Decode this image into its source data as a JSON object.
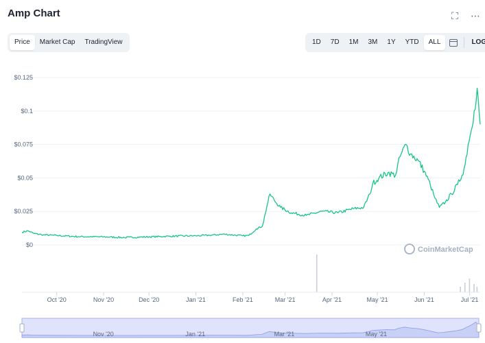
{
  "header": {
    "title": "Amp Chart",
    "fullscreen_icon": "expand-icon",
    "more_icon": "more-horizontal-icon"
  },
  "tabs_left": [
    {
      "label": "Price",
      "active": true
    },
    {
      "label": "Market Cap",
      "active": false
    },
    {
      "label": "TradingView",
      "active": false
    }
  ],
  "ranges": [
    {
      "label": "1D",
      "active": false
    },
    {
      "label": "7D",
      "active": false
    },
    {
      "label": "1M",
      "active": false
    },
    {
      "label": "3M",
      "active": false
    },
    {
      "label": "1Y",
      "active": false
    },
    {
      "label": "YTD",
      "active": false
    },
    {
      "label": "ALL",
      "active": true
    }
  ],
  "calendar_icon": "calendar-icon",
  "log_label": "LOG",
  "watermark": "CoinMarketCap",
  "colors": {
    "line": "#16c784",
    "volume": "#c9ced9",
    "navigator_fill": "#dfe3fb",
    "navigator_border": "#a8b2f0"
  },
  "chart_data": {
    "type": "line",
    "title": "Amp Chart",
    "x_label": "",
    "y_label": "",
    "ylim": [
      0,
      0.125
    ],
    "x_range": [
      "2020-09-08",
      "2021-07-08"
    ],
    "y_ticks": [
      {
        "value": 0,
        "label": "$0"
      },
      {
        "value": 0.025,
        "label": "$0.025"
      },
      {
        "value": 0.05,
        "label": "$0.05"
      },
      {
        "value": 0.075,
        "label": "$0.075"
      },
      {
        "value": 0.1,
        "label": "$0.1"
      },
      {
        "value": 0.125,
        "label": "$0.125"
      }
    ],
    "x_ticks": [
      {
        "date": "2020-10-01",
        "label": "Oct '20"
      },
      {
        "date": "2020-11-01",
        "label": "Nov '20"
      },
      {
        "date": "2020-12-01",
        "label": "Dec '20"
      },
      {
        "date": "2021-01-01",
        "label": "Jan '21"
      },
      {
        "date": "2021-02-01",
        "label": "Feb '21"
      },
      {
        "date": "2021-03-01",
        "label": "Mar '21"
      },
      {
        "date": "2021-04-01",
        "label": "Apr '21"
      },
      {
        "date": "2021-05-01",
        "label": "May '21"
      },
      {
        "date": "2021-06-01",
        "label": "Jun '21"
      },
      {
        "date": "2021-07-01",
        "label": "Jul '21"
      }
    ],
    "navigator_ticks": [
      {
        "date": "2020-11-01",
        "label": "Nov '20"
      },
      {
        "date": "2021-01-01",
        "label": "Jan '21"
      },
      {
        "date": "2021-03-01",
        "label": "Mar '21"
      },
      {
        "date": "2021-05-01",
        "label": "May '21"
      }
    ],
    "series": [
      {
        "values": [
          [
            "2020-09-08",
            0.0095
          ],
          [
            "2020-09-12",
            0.0105
          ],
          [
            "2020-09-16",
            0.0085
          ],
          [
            "2020-09-22",
            0.0075
          ],
          [
            "2020-10-01",
            0.007
          ],
          [
            "2020-10-15",
            0.0062
          ],
          [
            "2020-11-01",
            0.006
          ],
          [
            "2020-11-15",
            0.0055
          ],
          [
            "2020-12-01",
            0.006
          ],
          [
            "2020-12-15",
            0.0065
          ],
          [
            "2021-01-01",
            0.0068
          ],
          [
            "2021-01-10",
            0.0072
          ],
          [
            "2021-01-20",
            0.008
          ],
          [
            "2021-02-01",
            0.0068
          ],
          [
            "2021-02-05",
            0.007
          ],
          [
            "2021-02-10",
            0.012
          ],
          [
            "2021-02-14",
            0.014
          ],
          [
            "2021-02-17",
            0.029
          ],
          [
            "2021-02-19",
            0.038
          ],
          [
            "2021-02-22",
            0.033
          ],
          [
            "2021-02-26",
            0.028
          ],
          [
            "2021-03-05",
            0.024
          ],
          [
            "2021-03-15",
            0.022
          ],
          [
            "2021-03-25",
            0.025
          ],
          [
            "2021-04-05",
            0.024
          ],
          [
            "2021-04-15",
            0.027
          ],
          [
            "2021-04-22",
            0.028
          ],
          [
            "2021-04-26",
            0.038
          ],
          [
            "2021-04-28",
            0.046
          ],
          [
            "2021-05-02",
            0.05
          ],
          [
            "2021-05-08",
            0.054
          ],
          [
            "2021-05-13",
            0.052
          ],
          [
            "2021-05-16",
            0.066
          ],
          [
            "2021-05-20",
            0.075
          ],
          [
            "2021-05-23",
            0.068
          ],
          [
            "2021-05-28",
            0.063
          ],
          [
            "2021-06-01",
            0.055
          ],
          [
            "2021-06-05",
            0.045
          ],
          [
            "2021-06-08",
            0.035
          ],
          [
            "2021-06-11",
            0.028
          ],
          [
            "2021-06-15",
            0.032
          ],
          [
            "2021-06-19",
            0.038
          ],
          [
            "2021-06-23",
            0.045
          ],
          [
            "2021-06-26",
            0.052
          ],
          [
            "2021-06-28",
            0.06
          ],
          [
            "2021-06-30",
            0.075
          ],
          [
            "2021-07-02",
            0.085
          ],
          [
            "2021-07-04",
            0.1
          ],
          [
            "2021-07-06",
            0.117
          ],
          [
            "2021-07-08",
            0.09
          ]
        ]
      }
    ]
  }
}
